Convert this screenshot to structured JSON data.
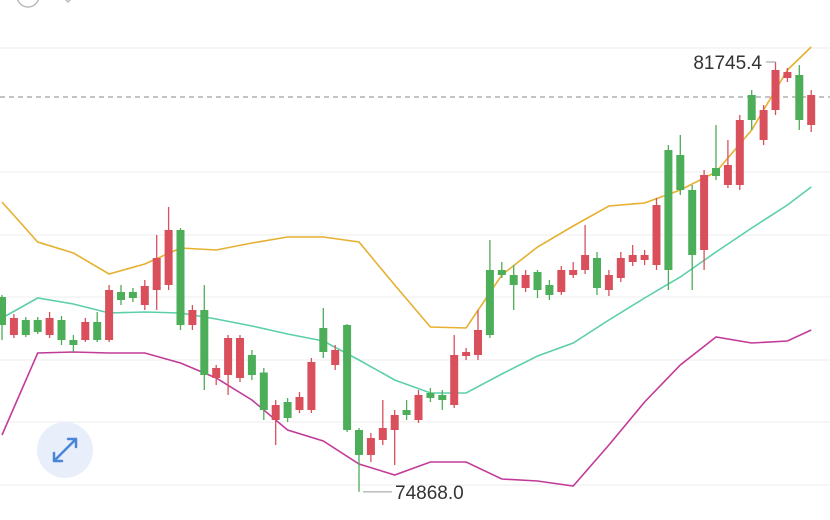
{
  "chart_data": {
    "type": "candlestick",
    "ylim": [
      74417,
      82737
    ],
    "up_color": "#4cae58",
    "down_color": "#d9505c",
    "price_line": 81185,
    "high_label": {
      "value": 81745.4,
      "label": "81745.4"
    },
    "low_label": {
      "value": 74868.0,
      "label": "74868.0"
    },
    "candles": {
      "open": [
        77537,
        77649,
        77377,
        77425,
        77649,
        77297,
        77217,
        77585,
        77297,
        78097,
        77937,
        77969,
        78161,
        78609,
        79057,
        77537,
        77777,
        76737,
        76849,
        77329,
        77329,
        76737,
        76177,
        76257,
        76049,
        76385,
        76945,
        77105,
        77137,
        75857,
        75457,
        75729,
        75889,
        76097,
        76097,
        76417,
        76369,
        76337,
        77057,
        77105,
        77457,
        77377,
        78337,
        78177,
        78337,
        78097,
        78017,
        78417,
        78417,
        78657,
        78129,
        78337,
        78609,
        78657,
        78657,
        79457,
        78417,
        79697,
        78657,
        79937,
        79921,
        80097,
        80817,
        80817,
        80977,
        81617,
        81585,
        80817,
        81217
      ],
      "high": [
        78017,
        77713,
        77665,
        77665,
        77745,
        77681,
        77377,
        77649,
        77745,
        78177,
        78177,
        78129,
        78257,
        78977,
        79425,
        79089,
        77857,
        78177,
        76897,
        77377,
        77377,
        77137,
        76849,
        76337,
        76369,
        76465,
        77009,
        77809,
        77217,
        77553,
        75889,
        75809,
        76337,
        76177,
        76337,
        76497,
        76529,
        76497,
        77377,
        77169,
        77777,
        78897,
        78545,
        78497,
        78417,
        78417,
        78257,
        78481,
        78545,
        79137,
        78705,
        78417,
        78705,
        78817,
        78737,
        79569,
        80417,
        80577,
        79777,
        80017,
        80737,
        80497,
        80897,
        81297,
        81057,
        81745.4,
        81649,
        81697,
        81297
      ],
      "low": [
        77297,
        77329,
        77345,
        77393,
        77329,
        77217,
        77105,
        77265,
        77265,
        77265,
        77857,
        77905,
        77777,
        77777,
        78097,
        77457,
        77457,
        76497,
        76577,
        76417,
        76625,
        76657,
        76017,
        75617,
        75985,
        76129,
        76129,
        77009,
        76817,
        75825,
        74868.0,
        75345,
        75617,
        75297,
        76017,
        75969,
        76305,
        76177,
        76209,
        76977,
        76977,
        77329,
        78289,
        77777,
        78065,
        77969,
        77937,
        78017,
        78289,
        78353,
        78017,
        78001,
        78225,
        78481,
        78497,
        78417,
        78097,
        79617,
        78097,
        78417,
        79857,
        79729,
        79697,
        80657,
        80417,
        80897,
        81425,
        80657,
        80625
      ],
      "close": [
        77985,
        77377,
        77617,
        77617,
        77377,
        77617,
        77297,
        77297,
        77585,
        77297,
        78065,
        78065,
        77857,
        78097,
        78177,
        79057,
        77537,
        77777,
        76689,
        76737,
        76689,
        77057,
        76777,
        76017,
        76305,
        76177,
        76177,
        77489,
        76897,
        77537,
        75857,
        75457,
        75697,
        75857,
        76177,
        76017,
        76449,
        76417,
        76257,
        77041,
        77057,
        78417,
        78417,
        78337,
        78129,
        78385,
        78177,
        78065,
        78337,
        78417,
        78609,
        78097,
        78289,
        78545,
        78577,
        78497,
        80337,
        80257,
        79697,
        78737,
        80049,
        79777,
        79777,
        81217,
        80497,
        80977,
        81489,
        81537,
        80737
      ]
    },
    "lines": [
      {
        "color": "#e6b030",
        "x": [
          0,
          3,
          6,
          9,
          12,
          15,
          18,
          21,
          24,
          27,
          30,
          33,
          36,
          39,
          42,
          45,
          48,
          51,
          54,
          57,
          60,
          63,
          66,
          68
        ],
        "values": [
          79505,
          78865,
          78689,
          78353,
          78513,
          78769,
          78737,
          78849,
          78945,
          78945,
          78865,
          78177,
          77505,
          77489,
          78337,
          78785,
          79121,
          79441,
          79489,
          79697,
          79985,
          80657,
          81617,
          81985
        ]
      },
      {
        "color": "#5ccfaa",
        "x": [
          0,
          3,
          6,
          9,
          12,
          15,
          18,
          21,
          24,
          27,
          30,
          33,
          36,
          39,
          42,
          45,
          48,
          51,
          54,
          57,
          60,
          63,
          66,
          68
        ],
        "values": [
          77649,
          77969,
          77873,
          77729,
          77745,
          77729,
          77633,
          77521,
          77393,
          77281,
          76977,
          76657,
          76449,
          76449,
          76753,
          77041,
          77249,
          77617,
          77969,
          78305,
          78705,
          79089,
          79457,
          79745
        ]
      },
      {
        "color": "#c23b98",
        "x": [
          0,
          3,
          6,
          9,
          12,
          15,
          18,
          21,
          24,
          27,
          30,
          33,
          36,
          39,
          42,
          45,
          48,
          51,
          54,
          57,
          60,
          63,
          66,
          68
        ],
        "values": [
          75777,
          77089,
          77105,
          77089,
          77089,
          76929,
          76689,
          76337,
          75857,
          75681,
          75313,
          75137,
          75345,
          75345,
          75073,
          75041,
          74961,
          75617,
          76305,
          76897,
          77345,
          77249,
          77281,
          77457
        ]
      }
    ]
  }
}
